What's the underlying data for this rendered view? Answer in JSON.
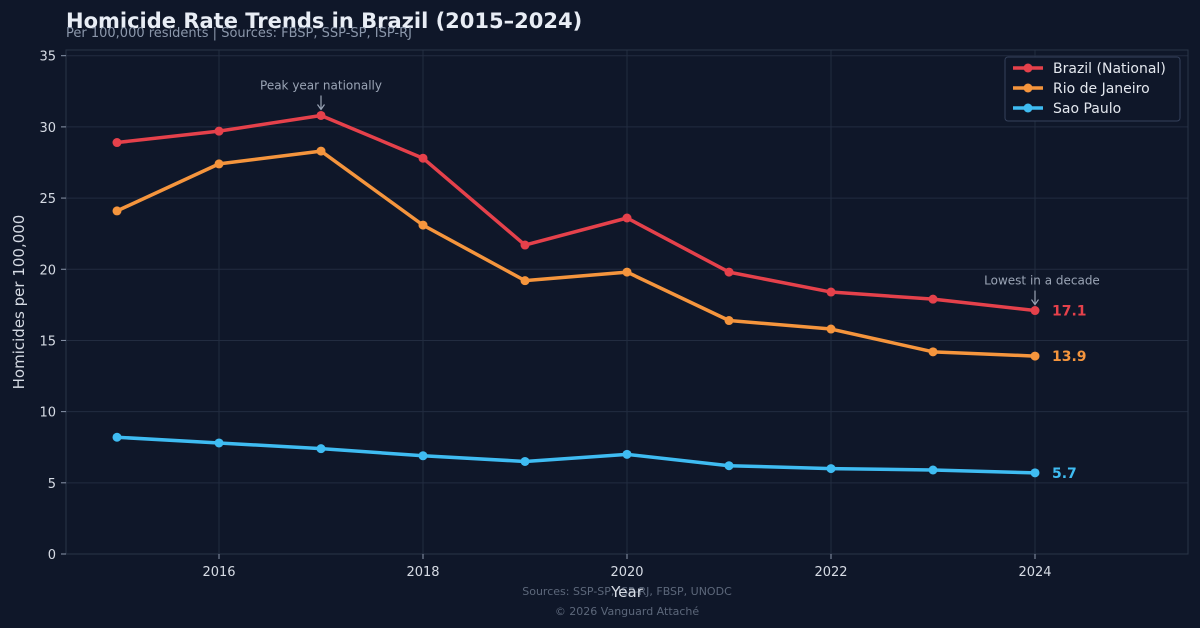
{
  "chart_data": {
    "type": "line",
    "title": "Homicide Rate Trends in Brazil (2015–2024)",
    "subtitle": "Per 100,000 residents | Sources: FBSP, SSP-SP, ISP-RJ",
    "xlabel": "Year",
    "ylabel": "Homicides per 100,000",
    "x": [
      2015,
      2016,
      2017,
      2018,
      2019,
      2020,
      2021,
      2022,
      2023,
      2024
    ],
    "xlim": [
      2014.5,
      2025.5
    ],
    "ylim": [
      0,
      35.4
    ],
    "xticks": [
      2016,
      2018,
      2020,
      2022,
      2024
    ],
    "yticks": [
      0,
      5,
      10,
      15,
      20,
      25,
      30,
      35
    ],
    "grid": true,
    "legend_position": "top-right",
    "series": [
      {
        "name": "Brazil (National)",
        "color": "#e5414b",
        "values": [
          28.9,
          29.7,
          30.8,
          27.8,
          21.7,
          23.6,
          19.8,
          18.4,
          17.9,
          17.1
        ],
        "end_label": "17.1"
      },
      {
        "name": "Rio de Janeiro",
        "color": "#f5953d",
        "values": [
          24.1,
          27.4,
          28.3,
          23.1,
          19.2,
          19.8,
          16.4,
          15.8,
          14.2,
          13.9
        ],
        "end_label": "13.9"
      },
      {
        "name": "Sao Paulo",
        "color": "#3fbcf2",
        "values": [
          8.2,
          7.8,
          7.4,
          6.9,
          6.5,
          7.0,
          6.2,
          6.0,
          5.9,
          5.7
        ],
        "end_label": "5.7"
      }
    ],
    "annotations": [
      {
        "text": "Peak year nationally",
        "x": 2017,
        "y": 30.8
      },
      {
        "text": "Lowest in a decade",
        "x": 2024,
        "y": 17.1
      }
    ]
  },
  "footer": {
    "sources": "Sources: SSP-SP, ISP-RJ, FBSP, UNODC",
    "copyright": "© 2026 Vanguard Attaché"
  }
}
